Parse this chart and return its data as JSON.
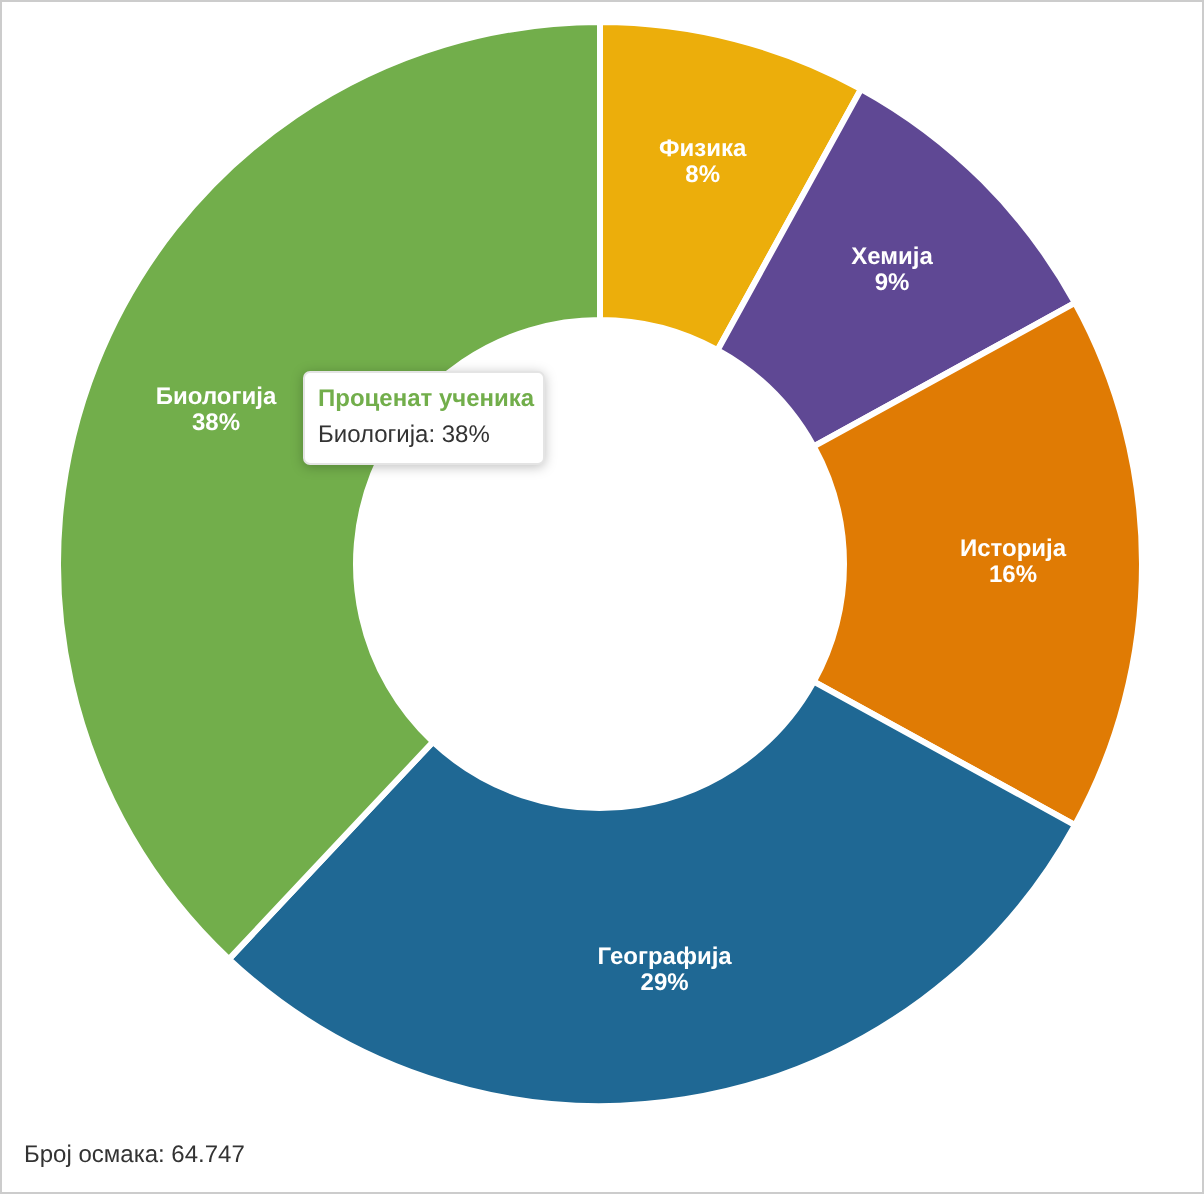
{
  "chart_data": {
    "type": "donut",
    "categories": [
      "Физика",
      "Хемија",
      "Историја",
      "Географија",
      "Биологија"
    ],
    "values": [
      8,
      9,
      16,
      29,
      38
    ],
    "colors": [
      "#ecae0b",
      "#5f4894",
      "#e07b04",
      "#1f6894",
      "#72ae4b"
    ],
    "value_labels": [
      "8%",
      "9%",
      "16%",
      "29%",
      "38%"
    ],
    "annotations": [
      "Проценат ученика",
      "Биологија: 38%",
      "Број осмака: 64.747"
    ]
  }
}
